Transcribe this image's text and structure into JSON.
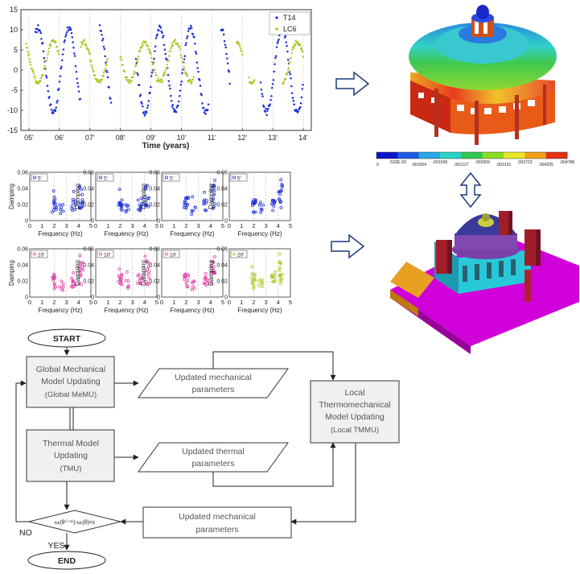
{
  "time_chart": {
    "type": "scatter",
    "xlabel": "Time (years)",
    "x_ticks": [
      "05'",
      "06'",
      "07'",
      "08'",
      "09'",
      "10'",
      "11'",
      "12'",
      "13'",
      "14'"
    ],
    "y_ticks": [
      -15,
      -10,
      -5,
      0,
      5,
      10,
      15
    ],
    "ylim": [
      -15,
      15
    ],
    "legend": {
      "placement": "top-right"
    },
    "series": [
      {
        "name": "T14",
        "color": "#1a2ed8",
        "marker": "dot"
      },
      {
        "name": "LC6",
        "color": "#a8c820",
        "marker": "dot"
      }
    ]
  },
  "damping_charts": {
    "type": "scatter",
    "xlabel": "Frequency (Hz)",
    "ylabel": "Damping",
    "x_ticks": [
      0,
      1,
      2,
      3,
      4,
      5
    ],
    "y_ticks": [
      0,
      0.02,
      0.04,
      0.06
    ],
    "y_tick_labels": [
      "0",
      "0.02",
      "0.04",
      "0.06"
    ],
    "xlim": [
      0,
      5
    ],
    "ylim": [
      0,
      0.06
    ],
    "panels": [
      {
        "legend": "5'",
        "color": "#1a2ed8"
      },
      {
        "legend": "5'",
        "color": "#1a2ed8"
      },
      {
        "legend": "5'",
        "color": "#1a2ed8"
      },
      {
        "legend": "5'",
        "color": "#1a2ed8"
      },
      {
        "legend": "10'",
        "color": "#e040a8"
      },
      {
        "legend": "10'",
        "color": "#e040a8"
      },
      {
        "legend": "10'",
        "color": "#e040a8"
      },
      {
        "legend": "20'",
        "color": "#a8c820"
      }
    ]
  },
  "colorbar": {
    "labels": [
      "0",
      ".532E-03",
      ".001064",
      ".001595",
      ".002127",
      ".002659",
      ".003191",
      ".003723",
      ".004255",
      ".004786"
    ],
    "colors": [
      "#0a14c8",
      "#1e5ae6",
      "#28a8e6",
      "#28d2c8",
      "#32c850",
      "#8cdc28",
      "#e6e628",
      "#f0a014",
      "#e63214"
    ]
  },
  "flowchart": {
    "start": "START",
    "end": "END",
    "global_memu": [
      "Global Mechanical",
      "Model Updating",
      "(Global MeMU)"
    ],
    "tmu": [
      "Thermal Model",
      "Updating",
      "(TMU)"
    ],
    "local_tmmu": [
      "Local",
      "Thermomechanical",
      "Model Updating",
      "(Local TMMU)"
    ],
    "updated_mech_1": [
      "Updated mechanical",
      "parameters"
    ],
    "updated_thermal": [
      "Updated thermal",
      "parameters"
    ],
    "updated_mech_2": [
      "Updated mechanical",
      "parameters"
    ],
    "condition": "ωᵢ(θ⁽ⁱ⁺¹⁾)-ωᵢ(θ)<ε",
    "no_label": "NO",
    "yes_label": "YES"
  }
}
